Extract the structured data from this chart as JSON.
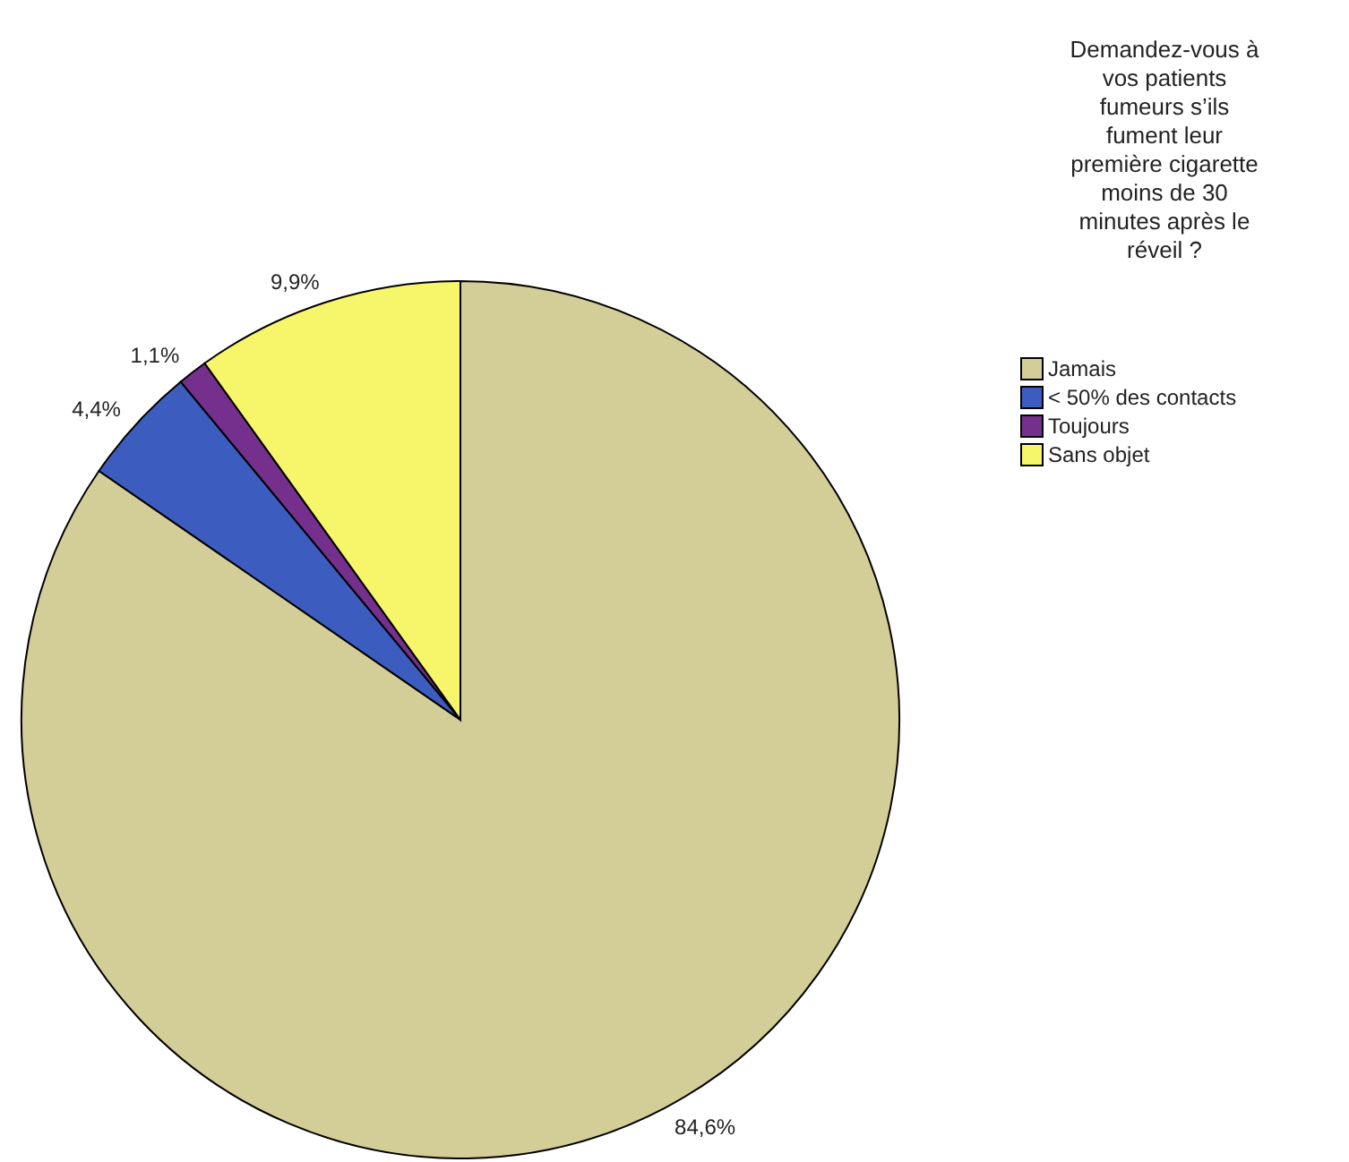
{
  "chart_data": {
    "type": "pie",
    "legend_title": "Demandez-vous à vos patients fumeurs s’ils fument leur première cigarette moins de 30 minutes après le réveil ?",
    "categories": [
      "Jamais",
      "< 50% des contacts",
      "Toujours",
      "Sans objet"
    ],
    "values": [
      84.6,
      4.4,
      1.1,
      9.9
    ],
    "colors": [
      "#d3ce98",
      "#3d5cc0",
      "#74308c",
      "#f7f56a"
    ],
    "value_labels": [
      "84,6%",
      "4,4%",
      "1,1%",
      "9,9%"
    ],
    "legend": "top right"
  }
}
